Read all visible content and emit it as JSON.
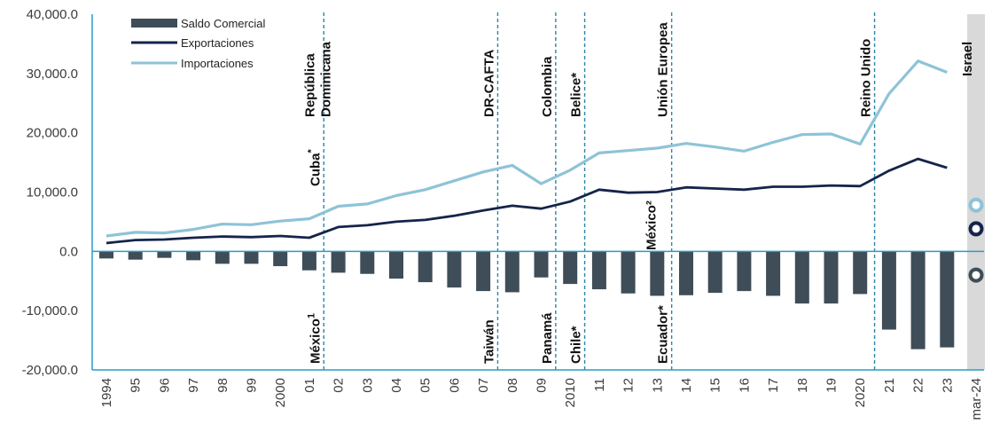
{
  "chart_data": {
    "type": "bar",
    "categories": [
      "1994",
      "95",
      "96",
      "97",
      "98",
      "99",
      "2000",
      "01",
      "02",
      "03",
      "04",
      "05",
      "06",
      "07",
      "08",
      "09",
      "2010",
      "11",
      "12",
      "13",
      "14",
      "15",
      "16",
      "17",
      "18",
      "19",
      "2020",
      "21",
      "22",
      "23",
      "mar-24"
    ],
    "ylim": [
      -20000,
      40000
    ],
    "yticks": [
      -20000,
      -10000,
      0,
      10000,
      20000,
      30000,
      40000
    ],
    "ytick_labels": [
      "-20,000.0",
      "-10,000.0",
      "0.0",
      "10,000.0",
      "20,000.0",
      "30,000.0",
      "40,000.0"
    ],
    "grid": false,
    "legend_position": "top-left",
    "colors": {
      "saldo": "#3e4d57",
      "exportaciones": "#15244a",
      "importaciones": "#8ec3d7",
      "treaty_line": "#2a86a6",
      "axis": "#2a9bc5",
      "highlight_band": "#d9d9d9"
    },
    "series": [
      {
        "name": "Saldo Comercial",
        "kind": "bar",
        "values": [
          -1200,
          -1400,
          -1100,
          -1500,
          -2100,
          -2100,
          -2500,
          -3200,
          -3600,
          -3800,
          -4600,
          -5200,
          -6100,
          -6700,
          -6900,
          -4400,
          -5500,
          -6400,
          -7100,
          -7500,
          -7400,
          -7000,
          -6700,
          -7500,
          -8800,
          -8800,
          -7200,
          -13200,
          -16500,
          -16200,
          -4000
        ]
      },
      {
        "name": "Exportaciones",
        "kind": "line",
        "values": [
          1400,
          1900,
          2000,
          2300,
          2500,
          2400,
          2600,
          2300,
          4100,
          4400,
          5000,
          5300,
          6000,
          6900,
          7700,
          7200,
          8400,
          10400,
          9900,
          10000,
          10800,
          10600,
          10400,
          10900,
          10900,
          11100,
          11000,
          13600,
          15600,
          14100,
          3800
        ]
      },
      {
        "name": "Importaciones",
        "kind": "line",
        "values": [
          2600,
          3200,
          3100,
          3700,
          4600,
          4500,
          5100,
          5500,
          7600,
          8000,
          9400,
          10400,
          11900,
          13400,
          14500,
          11400,
          13700,
          16600,
          17000,
          17400,
          18200,
          17600,
          16900,
          18400,
          19700,
          19800,
          18100,
          26600,
          32100,
          30200,
          7800
        ]
      }
    ],
    "treaties": [
      {
        "after_index": 7,
        "labels_top": [
          "República",
          "Dominicana"
        ],
        "label_mid": "Cuba",
        "label_mid_sup": "*",
        "label_bottom": "México",
        "label_bottom_sup": "1"
      },
      {
        "after_index": 13,
        "labels_top": [
          "DR-CAFTA"
        ],
        "label_bottom": "Taiwán"
      },
      {
        "after_index": 15,
        "labels_top": [
          "Colombia"
        ],
        "label_bottom": "Panamá"
      },
      {
        "after_index": 16,
        "labels_top": [
          "Belice*"
        ],
        "label_bottom": "Chile*"
      },
      {
        "after_index": 19,
        "labels_top": [
          "Unión Europea"
        ],
        "label_upper_mid": "México²",
        "label_bottom": "Ecuador*"
      },
      {
        "after_index": 26,
        "labels_top": [
          "Reino Unido"
        ]
      },
      {
        "after_index": 30,
        "labels_top": [
          "Israel"
        ],
        "highlight": true
      }
    ]
  }
}
